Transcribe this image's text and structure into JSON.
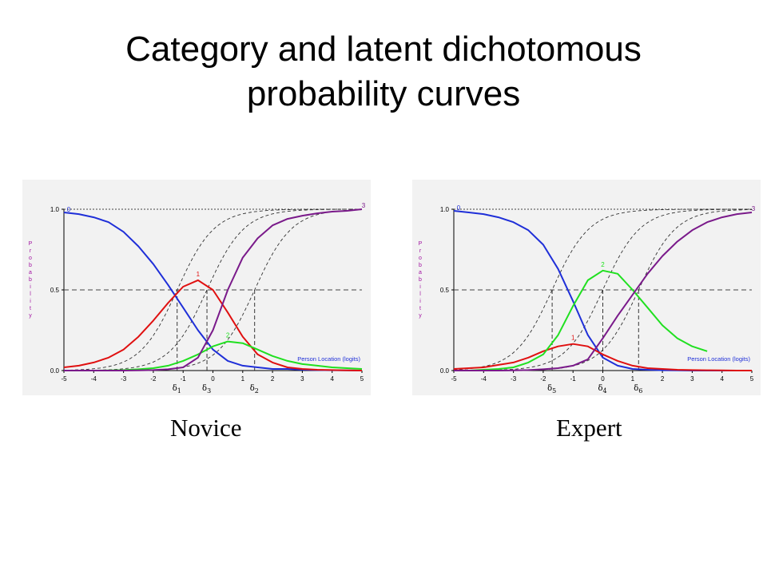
{
  "slide": {
    "title_line1": "Category and latent dichotomous",
    "title_line2": "probability curves"
  },
  "colors": {
    "cat0": "#1f2fd8",
    "cat1": "#e01010",
    "cat2": "#20e020",
    "cat3": "#7a1a8a",
    "latent": "#333333",
    "panel_bg": "#f2f2f2"
  },
  "chart_data": [
    {
      "type": "line",
      "caption": "Novice",
      "ylabel": "Probability",
      "xlabel": "Person Location (logits)",
      "xlim": [
        -5,
        5
      ],
      "ylim": [
        0,
        1
      ],
      "xticks": [
        "-5",
        "-4",
        "-3",
        "-2",
        "-1",
        "0",
        "1",
        "2",
        "3",
        "4",
        "5"
      ],
      "yticks": [
        "0.0",
        "0.5",
        "1.0"
      ],
      "reference_lines": [
        0.5,
        1.0
      ],
      "category_curves": [
        {
          "label": "0",
          "color": "#1f2fd8",
          "x": [
            -5,
            -4.5,
            -4,
            -3.5,
            -3,
            -2.5,
            -2,
            -1.5,
            -1,
            -0.5,
            0,
            0.5,
            1,
            1.5,
            2,
            2.5,
            3,
            3.5,
            4,
            4.5,
            5
          ],
          "values": [
            0.98,
            0.97,
            0.95,
            0.92,
            0.86,
            0.77,
            0.66,
            0.53,
            0.39,
            0.25,
            0.13,
            0.06,
            0.03,
            0.02,
            0.01,
            0.01,
            0.005,
            0.003,
            0.002,
            0.001,
            0.0
          ]
        },
        {
          "label": "1",
          "color": "#e01010",
          "x": [
            -5,
            -4.5,
            -4,
            -3.5,
            -3,
            -2.5,
            -2,
            -1.5,
            -1,
            -0.5,
            0,
            0.5,
            1,
            1.5,
            2,
            2.5,
            3,
            3.5,
            4,
            4.5,
            5
          ],
          "values": [
            0.02,
            0.03,
            0.05,
            0.08,
            0.13,
            0.21,
            0.31,
            0.42,
            0.52,
            0.56,
            0.5,
            0.36,
            0.21,
            0.1,
            0.05,
            0.02,
            0.01,
            0.005,
            0.003,
            0.001,
            0.0
          ]
        },
        {
          "label": "2",
          "color": "#20e020",
          "x": [
            -5,
            -4.5,
            -4,
            -3.5,
            -3,
            -2.5,
            -2,
            -1.5,
            -1,
            -0.5,
            0,
            0.5,
            1,
            1.5,
            2,
            2.5,
            3,
            3.5,
            4,
            4.5,
            5
          ],
          "values": [
            0.0,
            0.0,
            0.0,
            0.001,
            0.003,
            0.008,
            0.015,
            0.03,
            0.06,
            0.1,
            0.15,
            0.18,
            0.17,
            0.13,
            0.09,
            0.06,
            0.04,
            0.03,
            0.02,
            0.015,
            0.01
          ]
        },
        {
          "label": "3",
          "color": "#7a1a8a",
          "x": [
            -5,
            -4.5,
            -4,
            -3.5,
            -3,
            -2.5,
            -2,
            -1.5,
            -1,
            -0.5,
            0,
            0.5,
            1,
            1.5,
            2,
            2.5,
            3,
            3.5,
            4,
            4.5,
            5
          ],
          "values": [
            0.0,
            0.0,
            0.0,
            0.0,
            0.0,
            0.001,
            0.003,
            0.008,
            0.02,
            0.08,
            0.25,
            0.5,
            0.7,
            0.82,
            0.9,
            0.94,
            0.96,
            0.975,
            0.985,
            0.99,
            1.0
          ]
        }
      ],
      "latent_curves": [
        {
          "name": "delta1",
          "location": -1.2,
          "slope": 1.6
        },
        {
          "name": "delta3",
          "location": -0.2,
          "slope": 1.6
        },
        {
          "name": "delta2",
          "location": 1.4,
          "slope": 1.6
        }
      ],
      "thresholds": [
        {
          "label": "δ",
          "sub": "1",
          "x": -1.2
        },
        {
          "label": "δ",
          "sub": "3",
          "x": -0.2
        },
        {
          "label": "δ",
          "sub": "2",
          "x": 1.4
        }
      ]
    },
    {
      "type": "line",
      "caption": "Expert",
      "ylabel": "Probability",
      "xlabel": "Person Location (logits)",
      "xlim": [
        -5,
        5
      ],
      "ylim": [
        0,
        1
      ],
      "xticks": [
        "-5",
        "-4",
        "-3",
        "-2",
        "-1",
        "0",
        "1",
        "2",
        "3",
        "4",
        "5"
      ],
      "yticks": [
        "0.0",
        "0.5",
        "1.0"
      ],
      "reference_lines": [
        0.5,
        1.0
      ],
      "category_curves": [
        {
          "label": "0",
          "color": "#1f2fd8",
          "x": [
            -5,
            -4.5,
            -4,
            -3.5,
            -3,
            -2.5,
            -2,
            -1.5,
            -1,
            -0.5,
            0,
            0.5,
            1,
            1.5,
            2,
            2.5,
            3,
            3.5,
            4,
            4.5,
            5
          ],
          "values": [
            0.99,
            0.98,
            0.97,
            0.95,
            0.92,
            0.87,
            0.78,
            0.63,
            0.43,
            0.22,
            0.08,
            0.03,
            0.01,
            0.005,
            0.002,
            0.001,
            0.0,
            0.0,
            0.0,
            0.0,
            0.0
          ]
        },
        {
          "label": "1",
          "color": "#e01010",
          "x": [
            -5,
            -4.5,
            -4,
            -3.5,
            -3,
            -2.5,
            -2,
            -1.5,
            -1,
            -0.5,
            0,
            0.5,
            1,
            1.5,
            2,
            2.5,
            3,
            3.5,
            4,
            4.5,
            5
          ],
          "values": [
            0.01,
            0.015,
            0.02,
            0.035,
            0.05,
            0.08,
            0.12,
            0.15,
            0.165,
            0.15,
            0.1,
            0.06,
            0.03,
            0.015,
            0.01,
            0.005,
            0.003,
            0.002,
            0.001,
            0.0,
            0.0
          ]
        },
        {
          "label": "2",
          "color": "#20e020",
          "x": [
            -5,
            -4.5,
            -4,
            -3.5,
            -3,
            -2.5,
            -2,
            -1.5,
            -1,
            -0.5,
            0,
            0.5,
            1,
            1.5,
            2,
            2.5,
            3,
            3.5
          ],
          "values": [
            0.0,
            0.0,
            0.005,
            0.01,
            0.02,
            0.05,
            0.1,
            0.22,
            0.4,
            0.56,
            0.62,
            0.6,
            0.5,
            0.39,
            0.28,
            0.2,
            0.15,
            0.12
          ]
        },
        {
          "label": "3",
          "color": "#7a1a8a",
          "x": [
            -5,
            -4.5,
            -4,
            -3.5,
            -3,
            -2.5,
            -2,
            -1.5,
            -1,
            -0.5,
            0,
            0.5,
            1,
            1.5,
            2,
            2.5,
            3,
            3.5,
            4,
            4.5,
            5
          ],
          "values": [
            0.0,
            0.0,
            0.0,
            0.0,
            0.001,
            0.003,
            0.008,
            0.015,
            0.03,
            0.07,
            0.2,
            0.34,
            0.47,
            0.6,
            0.71,
            0.8,
            0.87,
            0.92,
            0.95,
            0.97,
            0.98
          ]
        }
      ],
      "latent_curves": [
        {
          "name": "delta5",
          "location": -1.7,
          "slope": 1.6
        },
        {
          "name": "delta4",
          "location": 0.0,
          "slope": 1.6
        },
        {
          "name": "delta6",
          "location": 1.2,
          "slope": 1.6
        }
      ],
      "thresholds": [
        {
          "label": "δ",
          "sub": "5",
          "x": -1.7
        },
        {
          "label": "δ",
          "sub": "4",
          "x": 0.0
        },
        {
          "label": "δ",
          "sub": "6",
          "x": 1.2
        }
      ]
    }
  ]
}
